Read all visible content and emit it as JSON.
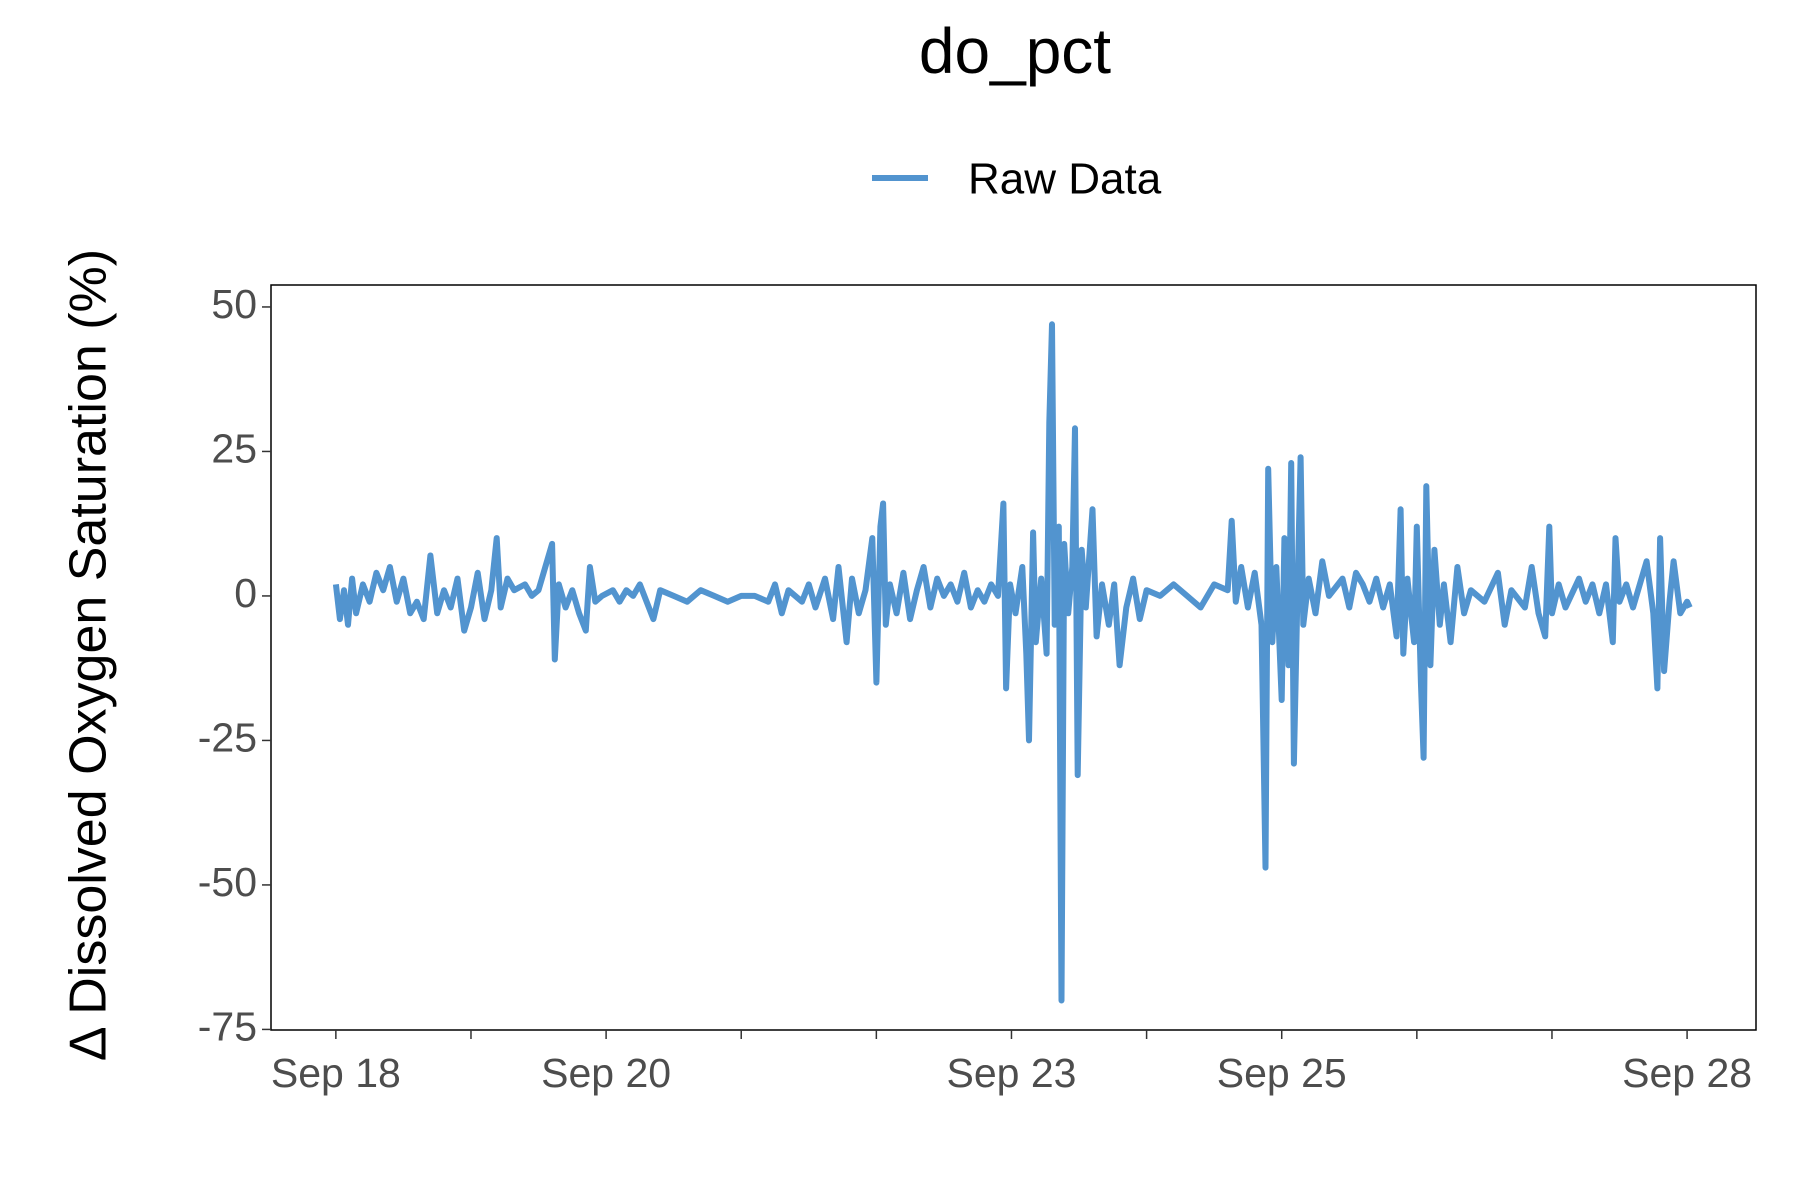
{
  "chart_data": {
    "type": "line",
    "title": "do_pct",
    "y_label": "Δ Dissolved Oxygen Saturation (%)",
    "x": [
      18.0,
      18.03,
      18.06,
      18.09,
      18.12,
      18.15,
      18.2,
      18.25,
      18.3,
      18.35,
      18.4,
      18.45,
      18.5,
      18.55,
      18.6,
      18.65,
      18.7,
      18.75,
      18.8,
      18.85,
      18.9,
      18.95,
      19.0,
      19.05,
      19.1,
      19.15,
      19.19,
      19.22,
      19.27,
      19.32,
      19.4,
      19.45,
      19.5,
      19.55,
      19.6,
      19.62,
      19.65,
      19.7,
      19.75,
      19.8,
      19.85,
      19.88,
      19.92,
      19.97,
      20.05,
      20.1,
      20.15,
      20.2,
      20.25,
      20.3,
      20.35,
      20.4,
      20.5,
      20.6,
      20.7,
      20.8,
      20.9,
      21.0,
      21.1,
      21.2,
      21.25,
      21.3,
      21.35,
      21.45,
      21.5,
      21.55,
      21.62,
      21.68,
      21.72,
      21.78,
      21.82,
      21.87,
      21.92,
      21.97,
      22.0,
      22.03,
      22.05,
      22.07,
      22.1,
      22.15,
      22.2,
      22.25,
      22.3,
      22.35,
      22.4,
      22.45,
      22.5,
      22.55,
      22.6,
      22.65,
      22.7,
      22.75,
      22.8,
      22.85,
      22.9,
      22.94,
      22.96,
      22.99,
      23.03,
      23.08,
      23.11,
      23.13,
      23.16,
      23.18,
      23.22,
      23.26,
      23.28,
      23.3,
      23.32,
      23.35,
      23.37,
      23.39,
      23.42,
      23.45,
      23.47,
      23.49,
      23.52,
      23.55,
      23.6,
      23.63,
      23.67,
      23.72,
      23.76,
      23.8,
      23.85,
      23.9,
      23.95,
      24.0,
      24.1,
      24.2,
      24.3,
      24.4,
      24.5,
      24.6,
      24.63,
      24.66,
      24.7,
      24.75,
      24.8,
      24.85,
      24.88,
      24.9,
      24.93,
      24.96,
      25.0,
      25.02,
      25.05,
      25.07,
      25.09,
      25.12,
      25.14,
      25.16,
      25.2,
      25.25,
      25.3,
      25.35,
      25.45,
      25.5,
      25.55,
      25.6,
      25.65,
      25.7,
      25.75,
      25.8,
      25.85,
      25.88,
      25.9,
      25.93,
      25.98,
      26.0,
      26.03,
      26.05,
      26.07,
      26.1,
      26.13,
      26.17,
      26.2,
      26.25,
      26.3,
      26.35,
      26.4,
      26.5,
      26.6,
      26.65,
      26.7,
      26.8,
      26.85,
      26.9,
      26.95,
      26.98,
      27.0,
      27.05,
      27.1,
      27.2,
      27.25,
      27.3,
      27.35,
      27.4,
      27.45,
      27.47,
      27.5,
      27.55,
      27.6,
      27.7,
      27.75,
      27.78,
      27.8,
      27.83,
      27.87,
      27.9,
      27.95,
      28.0,
      28.02
    ],
    "series": [
      {
        "name": "Raw Data",
        "color": "#5294cf",
        "values": [
          2,
          -4,
          1,
          -5,
          3,
          -3,
          2,
          -1,
          4,
          1,
          5,
          -1,
          3,
          -3,
          -1,
          -4,
          7,
          -3,
          1,
          -2,
          3,
          -6,
          -2,
          4,
          -4,
          1,
          10,
          -2,
          3,
          1,
          2,
          0,
          1,
          5,
          9,
          -11,
          2,
          -2,
          1,
          -3,
          -6,
          5,
          -1,
          0,
          1,
          -1,
          1,
          0,
          2,
          -1,
          -4,
          1,
          0,
          -1,
          1,
          0,
          -1,
          0,
          0,
          -1,
          2,
          -3,
          1,
          -1,
          2,
          -2,
          3,
          -4,
          5,
          -8,
          3,
          -3,
          1,
          10,
          -15,
          12,
          16,
          -5,
          2,
          -3,
          4,
          -4,
          1,
          5,
          -2,
          3,
          0,
          2,
          -1,
          4,
          -2,
          1,
          -1,
          2,
          0,
          16,
          -16,
          2,
          -3,
          5,
          -10,
          -25,
          11,
          -8,
          3,
          -10,
          30,
          47,
          -5,
          12,
          -70,
          9,
          -3,
          5,
          29,
          -31,
          8,
          -2,
          15,
          -7,
          2,
          -5,
          2,
          -12,
          -2,
          3,
          -4,
          1,
          0,
          2,
          0,
          -2,
          2,
          1,
          13,
          -1,
          5,
          -2,
          4,
          -5,
          -47,
          22,
          -8,
          5,
          -18,
          10,
          -12,
          23,
          -29,
          4,
          24,
          -5,
          3,
          -3,
          6,
          0,
          3,
          -2,
          4,
          2,
          -1,
          3,
          -2,
          2,
          -7,
          15,
          -10,
          3,
          -8,
          12,
          -15,
          -28,
          19,
          -12,
          8,
          -5,
          2,
          -8,
          5,
          -3,
          1,
          -1,
          4,
          -5,
          1,
          -2,
          5,
          -3,
          -7,
          12,
          -3,
          2,
          -2,
          3,
          -1,
          2,
          -3,
          2,
          -8,
          10,
          -1,
          2,
          -2,
          6,
          -3,
          -16,
          10,
          -13,
          -1,
          6,
          -3,
          -1,
          -2
        ]
      }
    ],
    "xlim": [
      17.52,
      28.51
    ],
    "xticks": [
      {
        "value": 18,
        "label": "Sep 18"
      },
      {
        "value": 19,
        "label": null
      },
      {
        "value": 20,
        "label": "Sep 20"
      },
      {
        "value": 21,
        "label": null
      },
      {
        "value": 22,
        "label": null
      },
      {
        "value": 23,
        "label": "Sep 23"
      },
      {
        "value": 24,
        "label": null
      },
      {
        "value": 25,
        "label": "Sep 25"
      },
      {
        "value": 26,
        "label": null
      },
      {
        "value": 27,
        "label": null
      },
      {
        "value": 28,
        "label": "Sep 28"
      }
    ],
    "ylim": [
      -75.1,
      53.8
    ],
    "yticks": [
      50,
      25,
      0,
      -25,
      -50,
      -75
    ],
    "grid": false,
    "legend": "top"
  }
}
